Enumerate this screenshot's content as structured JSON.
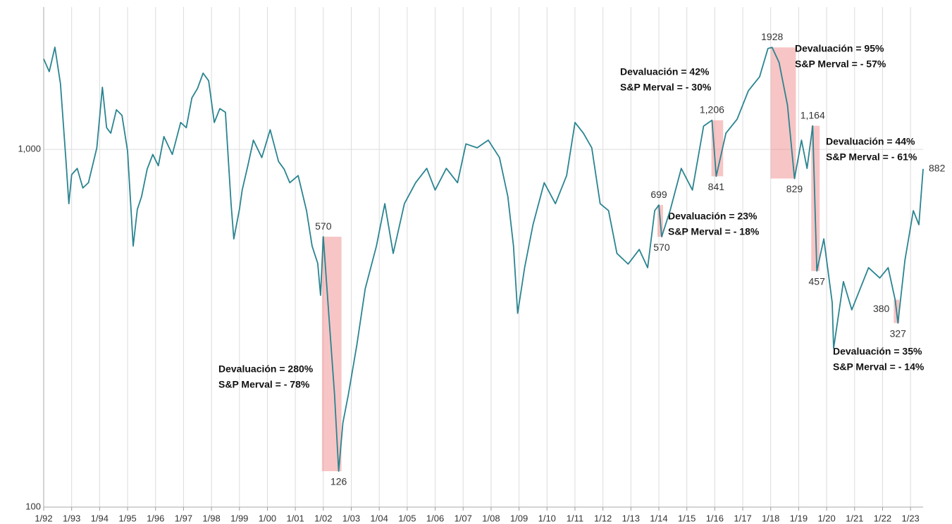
{
  "chart_data": {
    "type": "line",
    "log_scale": true,
    "grid": true,
    "xlim": [
      1992,
      2023.45
    ],
    "ylim": [
      100,
      2500
    ],
    "yticks": [
      100,
      {
        "value": 1000,
        "label": "1,000"
      }
    ],
    "xticks": [
      {
        "value": 1992,
        "label": "1/92"
      },
      {
        "value": 1993,
        "label": "1/93"
      },
      {
        "value": 1994,
        "label": "1/94"
      },
      {
        "value": 1995,
        "label": "1/95"
      },
      {
        "value": 1996,
        "label": "1/96"
      },
      {
        "value": 1997,
        "label": "1/97"
      },
      {
        "value": 1998,
        "label": "1/98"
      },
      {
        "value": 1999,
        "label": "1/99"
      },
      {
        "value": 2000,
        "label": "1/00"
      },
      {
        "value": 2001,
        "label": "1/01"
      },
      {
        "value": 2002,
        "label": "1/02"
      },
      {
        "value": 2003,
        "label": "1/03"
      },
      {
        "value": 2004,
        "label": "1/04"
      },
      {
        "value": 2005,
        "label": "1/05"
      },
      {
        "value": 2006,
        "label": "1/06"
      },
      {
        "value": 2007,
        "label": "1/07"
      },
      {
        "value": 2008,
        "label": "1/08"
      },
      {
        "value": 2009,
        "label": "1/09"
      },
      {
        "value": 2010,
        "label": "1/10"
      },
      {
        "value": 2011,
        "label": "1/11"
      },
      {
        "value": 2012,
        "label": "1/12"
      },
      {
        "value": 2013,
        "label": "1/13"
      },
      {
        "value": 2014,
        "label": "1/14"
      },
      {
        "value": 2015,
        "label": "1/15"
      },
      {
        "value": 2016,
        "label": "1/16"
      },
      {
        "value": 2017,
        "label": "1/17"
      },
      {
        "value": 2018,
        "label": "1/18"
      },
      {
        "value": 2019,
        "label": "1/19"
      },
      {
        "value": 2020,
        "label": "1/20"
      },
      {
        "value": 2021,
        "label": "1/21"
      },
      {
        "value": 2022,
        "label": "1/22"
      },
      {
        "value": 2023,
        "label": "1/23"
      }
    ],
    "x": [
      1992.0,
      1992.2,
      1992.4,
      1992.6,
      1992.8,
      1992.9,
      1993.0,
      1993.2,
      1993.4,
      1993.6,
      1993.9,
      1994.1,
      1994.25,
      1994.4,
      1994.6,
      1994.8,
      1995.0,
      1995.2,
      1995.35,
      1995.5,
      1995.7,
      1995.9,
      1996.1,
      1996.3,
      1996.6,
      1996.9,
      1997.1,
      1997.3,
      1997.5,
      1997.7,
      1997.9,
      1998.1,
      1998.3,
      1998.5,
      1998.7,
      1998.8,
      1999.0,
      1999.1,
      1999.3,
      1999.5,
      1999.8,
      2000.1,
      2000.4,
      2000.6,
      2000.8,
      2001.1,
      2001.4,
      2001.6,
      2001.8,
      2001.9,
      2002.0,
      2002.2,
      2002.4,
      2002.55,
      2002.7,
      2002.9,
      2003.2,
      2003.5,
      2003.9,
      2004.2,
      2004.5,
      2004.9,
      2005.3,
      2005.7,
      2006.0,
      2006.4,
      2006.8,
      2007.1,
      2007.5,
      2007.9,
      2008.3,
      2008.6,
      2008.8,
      2008.95,
      2009.2,
      2009.5,
      2009.9,
      2010.3,
      2010.7,
      2011.0,
      2011.3,
      2011.6,
      2011.9,
      2012.2,
      2012.5,
      2012.9,
      2013.3,
      2013.6,
      2013.85,
      2014.0,
      2014.1,
      2014.4,
      2014.8,
      2015.2,
      2015.6,
      2015.9,
      2016.05,
      2016.4,
      2016.8,
      2017.2,
      2017.6,
      2017.9,
      2018.05,
      2018.3,
      2018.6,
      2018.85,
      2019.1,
      2019.3,
      2019.5,
      2019.65,
      2019.9,
      2020.2,
      2020.25,
      2020.6,
      2020.9,
      2021.2,
      2021.5,
      2021.9,
      2022.2,
      2022.45,
      2022.55,
      2022.8,
      2023.1,
      2023.3,
      2023.45
    ],
    "series": [
      {
        "color": "#2a8490",
        "values": [
          1790,
          1650,
          1930,
          1526,
          925,
          705,
          850,
          885,
          780,
          807,
          1010,
          1492,
          1150,
          1110,
          1290,
          1245,
          991,
          537,
          680,
          738,
          880,
          968,
          900,
          1086,
          968,
          1189,
          1150,
          1393,
          1480,
          1633,
          1555,
          1189,
          1300,
          1270,
          705,
          562,
          680,
          770,
          900,
          1061,
          949,
          1135,
          925,
          880,
          807,
          845,
          674,
          537,
          480,
          391,
          570,
          341,
          207,
          126,
          172,
          207,
          284,
          408,
          537,
          705,
          512,
          705,
          807,
          885,
          770,
          885,
          807,
          1036,
          1010,
          1061,
          949,
          738,
          537,
          348,
          467,
          616,
          807,
          705,
          845,
          1189,
          1110,
          1010,
          705,
          674,
          512,
          478,
          525,
          467,
          674,
          699,
          570,
          674,
          885,
          770,
          1162,
          1206,
          841,
          1110,
          1215,
          1458,
          1595,
          1914,
          1928,
          1750,
          1330,
          829,
          1061,
          885,
          1164,
          457,
          562,
          373,
          278,
          427,
          356,
          408,
          467,
          437,
          467,
          380,
          327,
          490,
          674,
          616,
          882
        ],
        "value_labels": [
          null,
          null,
          null,
          null,
          null,
          null,
          null,
          null,
          null,
          null,
          null,
          null,
          null,
          null,
          null,
          null,
          null,
          null,
          null,
          null,
          null,
          null,
          null,
          null,
          null,
          null,
          null,
          null,
          null,
          null,
          null,
          null,
          null,
          null,
          null,
          null,
          null,
          null,
          null,
          null,
          null,
          null,
          null,
          null,
          null,
          null,
          null,
          null,
          null,
          null,
          "570",
          null,
          null,
          "126",
          null,
          null,
          null,
          null,
          null,
          null,
          null,
          null,
          null,
          null,
          null,
          null,
          null,
          null,
          null,
          null,
          null,
          null,
          null,
          null,
          null,
          null,
          null,
          null,
          null,
          null,
          null,
          null,
          null,
          null,
          null,
          null,
          null,
          null,
          null,
          "699",
          "570",
          null,
          null,
          null,
          null,
          "1,206",
          "841",
          null,
          null,
          null,
          null,
          null,
          "1928",
          null,
          null,
          "829",
          null,
          null,
          "1,164",
          "457",
          null,
          null,
          null,
          null,
          null,
          null,
          null,
          null,
          null,
          "380",
          "327",
          null,
          null,
          null,
          "882"
        ]
      }
    ],
    "periods": [
      {
        "start": 2001.95,
        "end": 2002.65,
        "text": [
          "Devaluación = 280%",
          "S&P Merval = - 78%"
        ]
      },
      {
        "start": 2013.95,
        "end": 2014.15,
        "text": [
          "Devaluación = 23%",
          "S&P Merval = - 18%"
        ]
      },
      {
        "start": 2015.88,
        "end": 2016.3,
        "text": [
          "Devaluación = 42%",
          "S&P Merval = - 30%"
        ]
      },
      {
        "start": 2018.0,
        "end": 2018.9,
        "text": [
          "Devaluación = 95%",
          "S&P Merval = - 57%"
        ]
      },
      {
        "start": 2019.45,
        "end": 2019.75,
        "text": [
          "Devaluación = 44%",
          "S&P Merval = - 61%"
        ]
      },
      {
        "start": 2022.4,
        "end": 2022.6,
        "text": [
          "Devaluación = 35%",
          "S&P Merval = - 14%"
        ]
      }
    ]
  }
}
